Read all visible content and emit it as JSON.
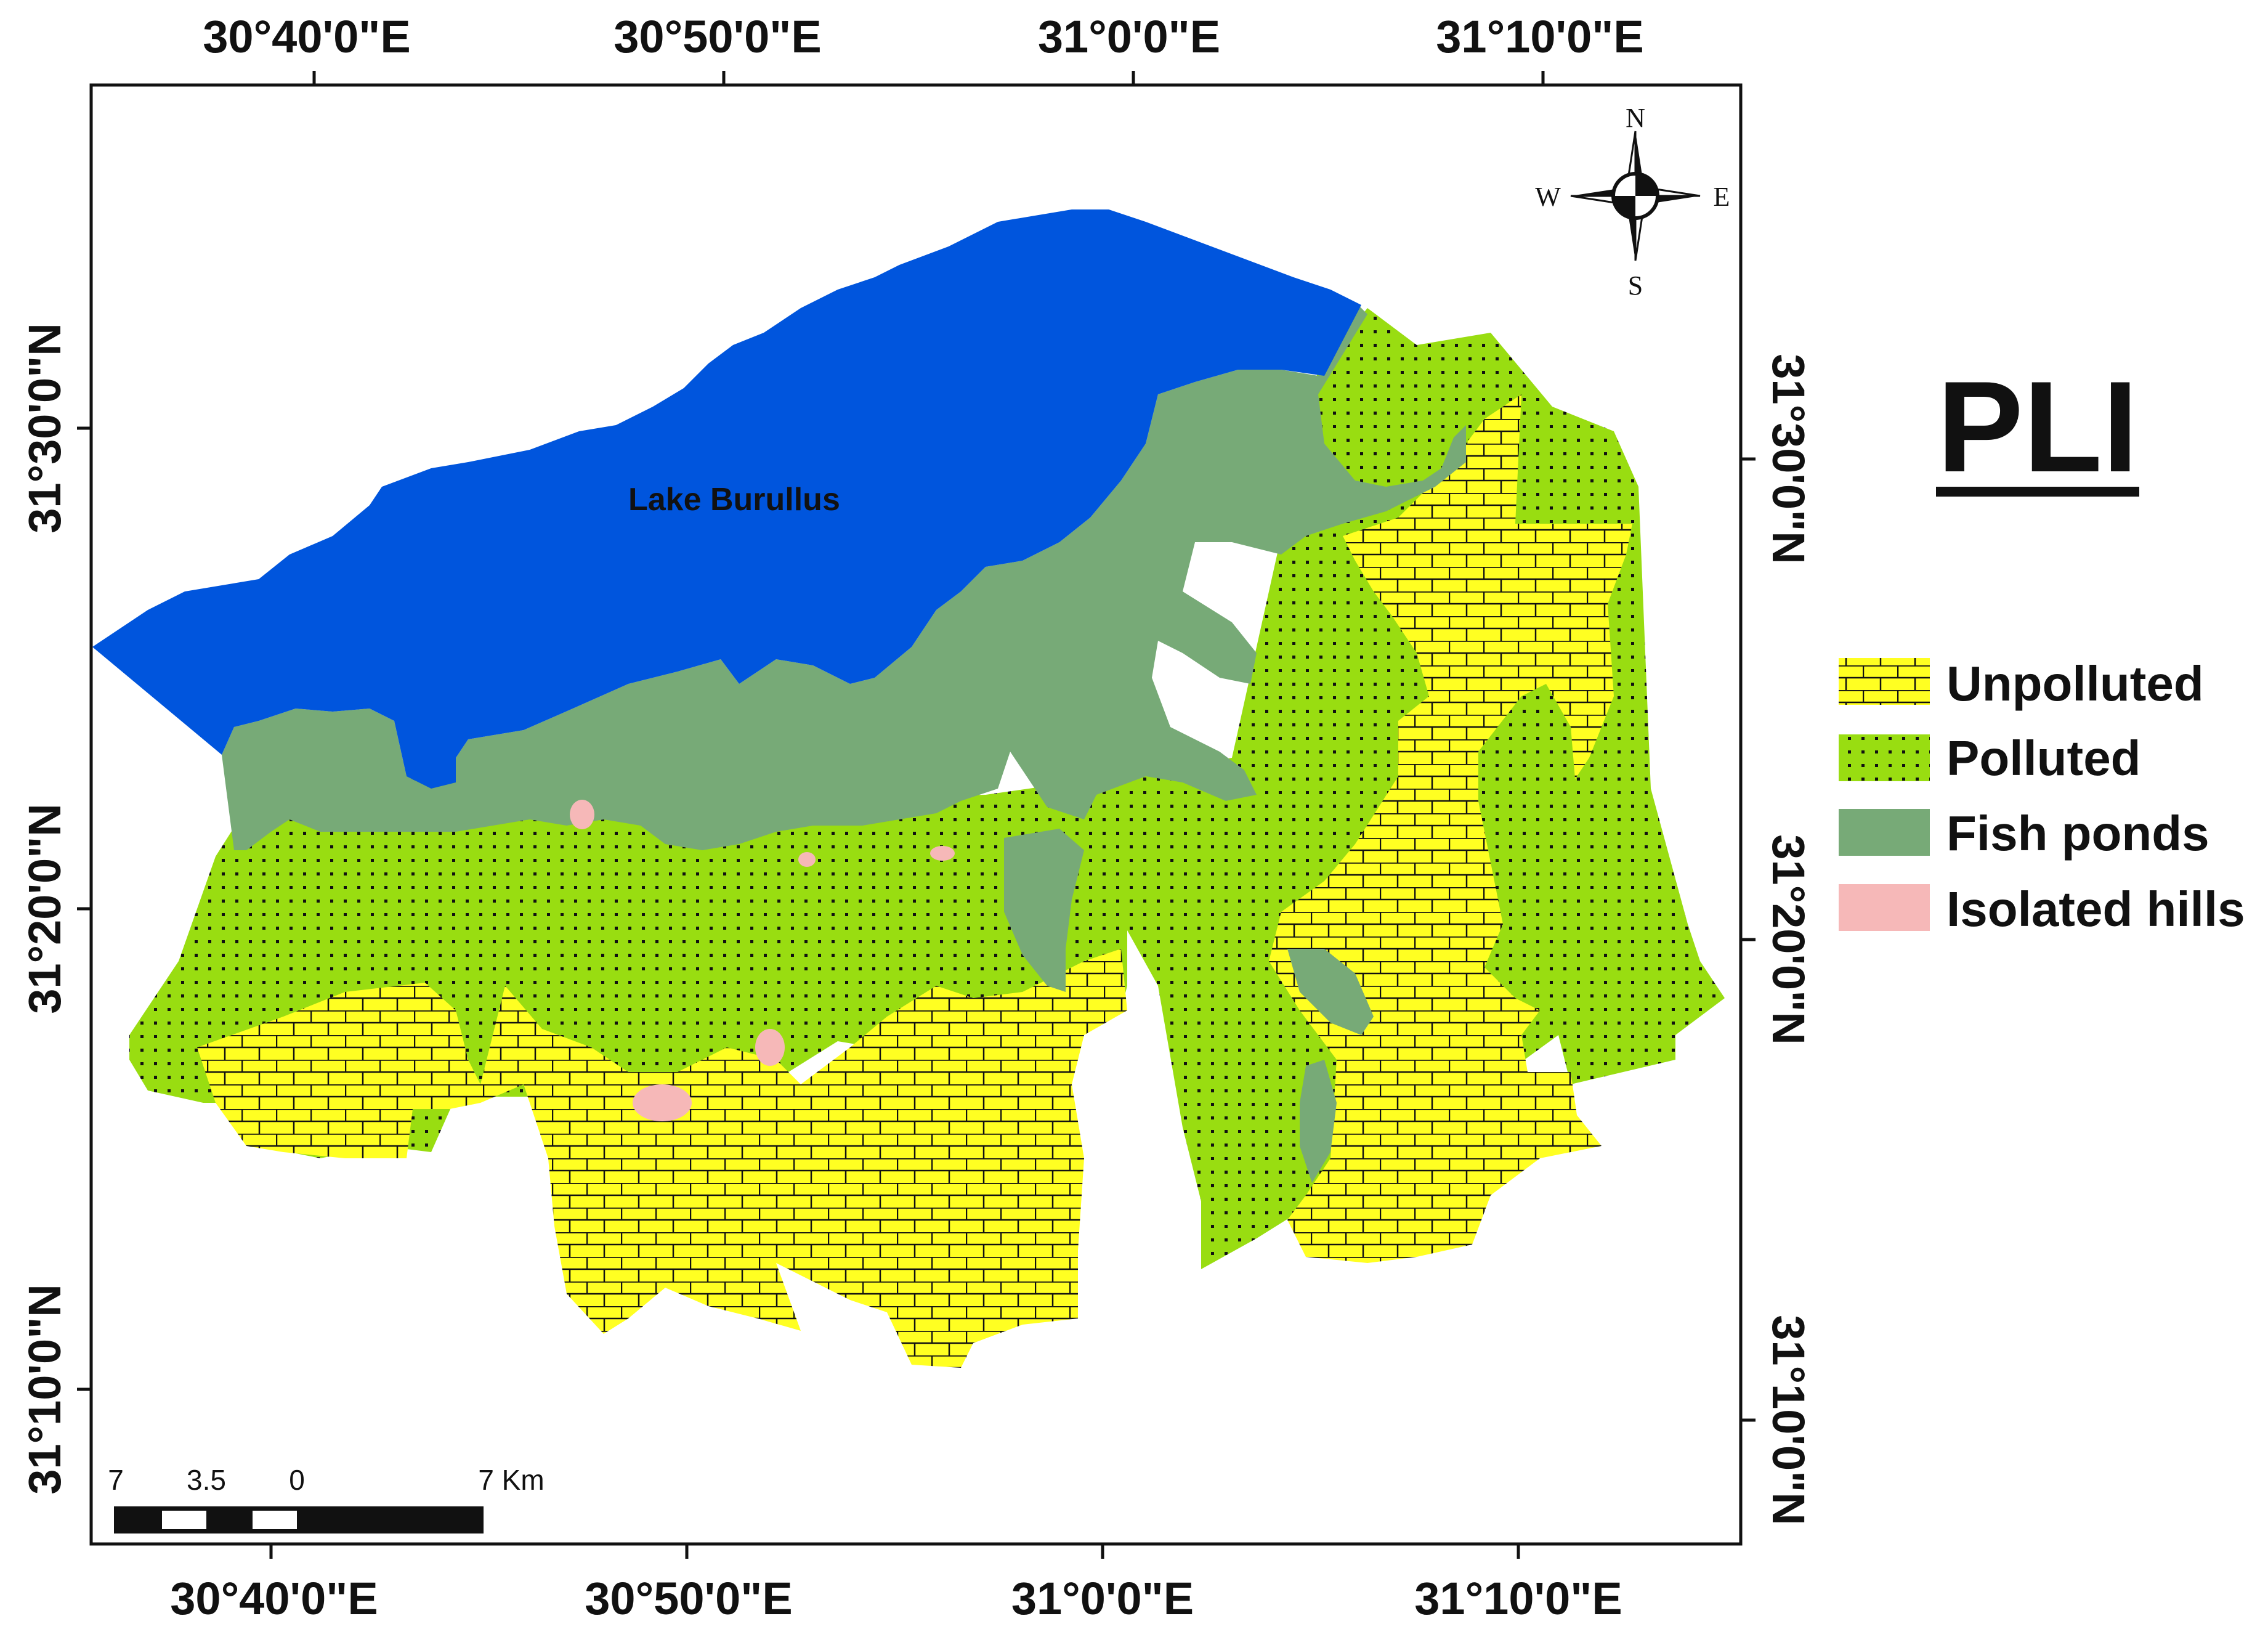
{
  "title": "PLI",
  "lake_label": "Lake Burullus",
  "colors": {
    "lake": "#0055dd",
    "unpolluted": "#ffff22",
    "polluted": "#99dd11",
    "fish_ponds": "#77aa77",
    "isolated_hills": "#f6b8b8",
    "frame": "#111111"
  },
  "legend": [
    {
      "key": "unpolluted",
      "label": "Unpolluted",
      "pattern": "brick"
    },
    {
      "key": "polluted",
      "label": "Polluted",
      "pattern": "dots"
    },
    {
      "key": "fish_ponds",
      "label": "Fish ponds",
      "pattern": "solid"
    },
    {
      "key": "isolated_hills",
      "label": "Isolated hills",
      "pattern": "solid"
    }
  ],
  "axes": {
    "top_lon_labels": [
      "30°40'0\"E",
      "30°50'0\"E",
      "31°0'0\"E",
      "31°10'0\"E"
    ],
    "bottom_lon_labels": [
      "30°40'0\"E",
      "30°50'0\"E",
      "31°0'0\"E",
      "31°10'0\"E"
    ],
    "left_lat_labels": [
      "31°30'0\"N",
      "31°20'0\"N",
      "31°10'0\"N"
    ],
    "right_lat_labels": [
      "31°30'0\"N",
      "31°20'0\"N",
      "31°10'0\"N"
    ]
  },
  "compass": {
    "n": "N",
    "s": "S",
    "e": "E",
    "w": "W"
  },
  "scale_bar": {
    "labels": [
      "7",
      "3.5",
      "0",
      "7 Km"
    ]
  }
}
